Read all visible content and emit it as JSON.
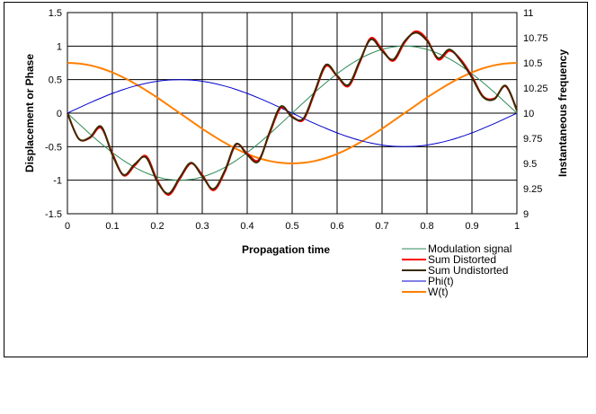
{
  "chart_data": {
    "type": "line",
    "title": "",
    "xlabel": "Propagation time",
    "ylabel": "Displacement or Phase",
    "y2label": "Instantaneous frequency",
    "xlim": [
      0,
      1
    ],
    "ylim": [
      -1.5,
      1.5
    ],
    "y2lim": [
      9,
      11
    ],
    "x_ticks": [
      "0",
      "0.1",
      "0.2",
      "0.3",
      "0.4",
      "0.5",
      "0.6",
      "0.7",
      "0.8",
      "0.9",
      "1"
    ],
    "y_ticks": [
      "1.5",
      "1",
      "0.5",
      "0",
      "-0.5",
      "-1",
      "-1.5"
    ],
    "y2_ticks": [
      "11",
      "10.75",
      "10.5",
      "10.25",
      "10",
      "9.75",
      "9.5",
      "9.25",
      "9"
    ],
    "grid": true,
    "legend_position": "bottom-right",
    "x": [
      0,
      0.025,
      0.05,
      0.075,
      0.1,
      0.125,
      0.15,
      0.175,
      0.2,
      0.225,
      0.25,
      0.275,
      0.3,
      0.325,
      0.35,
      0.375,
      0.4,
      0.425,
      0.45,
      0.475,
      0.5,
      0.525,
      0.55,
      0.575,
      0.6,
      0.625,
      0.65,
      0.675,
      0.7,
      0.725,
      0.75,
      0.775,
      0.8,
      0.825,
      0.85,
      0.875,
      0.9,
      0.925,
      0.95,
      0.975,
      1
    ],
    "series": [
      {
        "name": "Modulation signal",
        "color": "#2e8b57",
        "axis": "left",
        "values": [
          0,
          -0.156,
          -0.309,
          -0.454,
          -0.588,
          -0.707,
          -0.809,
          -0.891,
          -0.951,
          -0.988,
          -1,
          -0.988,
          -0.951,
          -0.891,
          -0.809,
          -0.707,
          -0.588,
          -0.454,
          -0.309,
          -0.156,
          0,
          0.156,
          0.309,
          0.454,
          0.588,
          0.707,
          0.809,
          0.891,
          0.951,
          0.988,
          1,
          0.988,
          0.951,
          0.891,
          0.809,
          0.707,
          0.588,
          0.454,
          0.309,
          0.156,
          0
        ]
      },
      {
        "name": "Sum Distorted",
        "color": "#ff0000",
        "axis": "left",
        "values": [
          0,
          -0.38,
          -0.37,
          -0.22,
          -0.6,
          -0.93,
          -0.78,
          -0.64,
          -1.0,
          -1.22,
          -0.98,
          -0.75,
          -0.92,
          -1.15,
          -0.88,
          -0.47,
          -0.6,
          -0.7,
          -0.3,
          0.08,
          -0.05,
          -0.1,
          0.3,
          0.7,
          0.55,
          0.4,
          0.75,
          1.12,
          0.95,
          0.78,
          1.05,
          1.22,
          1.1,
          0.8,
          0.93,
          0.8,
          0.55,
          0.25,
          0.22,
          0.4,
          0.05
        ]
      },
      {
        "name": "Sum Undistorted",
        "color": "#3a2a00",
        "axis": "left",
        "values": [
          0,
          -0.38,
          -0.36,
          -0.2,
          -0.62,
          -0.92,
          -0.76,
          -0.66,
          -1.02,
          -1.2,
          -0.96,
          -0.74,
          -0.94,
          -1.13,
          -0.86,
          -0.46,
          -0.62,
          -0.72,
          -0.28,
          0.1,
          -0.06,
          -0.08,
          0.32,
          0.72,
          0.56,
          0.42,
          0.77,
          1.1,
          0.93,
          0.8,
          1.07,
          1.2,
          1.08,
          0.82,
          0.95,
          0.78,
          0.53,
          0.24,
          0.21,
          0.41,
          0.04
        ]
      },
      {
        "name": "Phi(t)",
        "color": "#0000cc",
        "axis": "left",
        "values": [
          0,
          0.078,
          0.155,
          0.227,
          0.294,
          0.354,
          0.405,
          0.446,
          0.476,
          0.494,
          0.5,
          0.494,
          0.476,
          0.446,
          0.405,
          0.354,
          0.294,
          0.227,
          0.155,
          0.078,
          0,
          -0.078,
          -0.155,
          -0.227,
          -0.294,
          -0.354,
          -0.405,
          -0.446,
          -0.476,
          -0.494,
          -0.5,
          -0.494,
          -0.476,
          -0.446,
          -0.405,
          -0.354,
          -0.294,
          -0.227,
          -0.155,
          -0.078,
          0
        ]
      },
      {
        "name": "W(t)",
        "color": "#ff7f00",
        "axis": "right",
        "values": [
          10.5,
          10.494,
          10.476,
          10.446,
          10.405,
          10.354,
          10.294,
          10.227,
          10.155,
          10.078,
          10,
          9.922,
          9.845,
          9.773,
          9.706,
          9.646,
          9.595,
          9.554,
          9.524,
          9.506,
          9.5,
          9.506,
          9.524,
          9.554,
          9.595,
          9.646,
          9.706,
          9.773,
          9.845,
          9.922,
          10,
          10.078,
          10.155,
          10.227,
          10.294,
          10.354,
          10.405,
          10.446,
          10.476,
          10.494,
          10.5
        ]
      }
    ]
  }
}
